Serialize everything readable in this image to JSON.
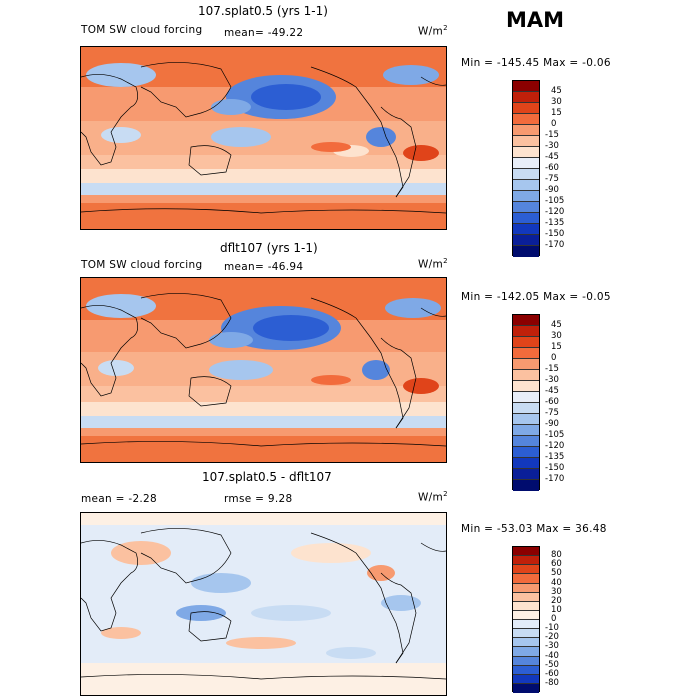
{
  "season": "MAM",
  "panels": [
    {
      "title": "107.splat0.5 (yrs 1-1)",
      "left_label": "TOM SW cloud forcing",
      "mean_label": "mean=  -49.22",
      "units": "W/m",
      "units_sup": "2",
      "range": "Min =  -145.45  Max =   -0.06",
      "colorbar": {
        "colors": [
          "#8b0000",
          "#c0200a",
          "#e0441a",
          "#f26b3c",
          "#f79a70",
          "#fbc1a0",
          "#fde3cf",
          "#e8eef8",
          "#c8dcf3",
          "#a6c6ee",
          "#7fa9e6",
          "#5585dc",
          "#2c5ed3",
          "#1238bd",
          "#0a1f99",
          "#000c6e"
        ],
        "ticks": [
          "45",
          "30",
          "15",
          "0",
          "-15",
          "-30",
          "-45",
          "-60",
          "-75",
          "-90",
          "-105",
          "-120",
          "-135",
          "-150",
          "-170"
        ]
      }
    },
    {
      "title": "dflt107 (yrs 1-1)",
      "left_label": "TOM SW cloud forcing",
      "mean_label": "mean=  -46.94",
      "units": "W/m",
      "units_sup": "2",
      "range": "Min =  -142.05  Max =   -0.05",
      "colorbar": {
        "colors": [
          "#8b0000",
          "#c0200a",
          "#e0441a",
          "#f26b3c",
          "#f79a70",
          "#fbc1a0",
          "#fde3cf",
          "#e8eef8",
          "#c8dcf3",
          "#a6c6ee",
          "#7fa9e6",
          "#5585dc",
          "#2c5ed3",
          "#1238bd",
          "#0a1f99",
          "#000c6e"
        ],
        "ticks": [
          "45",
          "30",
          "15",
          "0",
          "-15",
          "-30",
          "-45",
          "-60",
          "-75",
          "-90",
          "-105",
          "-120",
          "-135",
          "-150",
          "-170"
        ]
      }
    },
    {
      "title": "107.splat0.5 - dflt107",
      "left_label": "mean =   -2.28",
      "mean_label": "rmse =    9.28",
      "units": "W/m",
      "units_sup": "2",
      "range": "Min =  -53.03  Max =   36.48",
      "colorbar": {
        "colors": [
          "#8b0000",
          "#c0200a",
          "#e0441a",
          "#f26b3c",
          "#f79a70",
          "#fbc1a0",
          "#fde3cf",
          "#fdf0e4",
          "#e3ecf8",
          "#c8dcf3",
          "#a6c6ee",
          "#7fa9e6",
          "#5585dc",
          "#2c5ed3",
          "#1238bd",
          "#000c6e"
        ],
        "ticks": [
          "80",
          "60",
          "50",
          "40",
          "30",
          "20",
          "10",
          "0",
          "-10",
          "-20",
          "-30",
          "-40",
          "-50",
          "-60",
          "-80"
        ]
      }
    }
  ]
}
